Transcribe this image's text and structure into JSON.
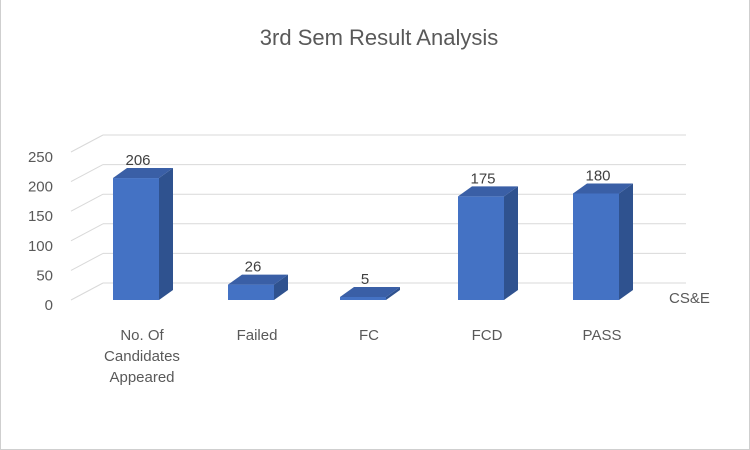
{
  "chart_data": {
    "type": "bar",
    "title": "3rd Sem Result Analysis",
    "categories": [
      [
        "No. Of",
        "Candidates",
        "Appeared"
      ],
      [
        "Failed"
      ],
      [
        "FC"
      ],
      [
        "FCD"
      ],
      [
        "PASS"
      ]
    ],
    "series": [
      {
        "name": "CS&E",
        "values": [
          206,
          26,
          5,
          175,
          180
        ],
        "color": "#4472C4"
      }
    ],
    "yticks": [
      0,
      50,
      100,
      150,
      200,
      250
    ],
    "ylim": [
      0,
      250
    ],
    "grid": true,
    "legend_position": "right"
  }
}
